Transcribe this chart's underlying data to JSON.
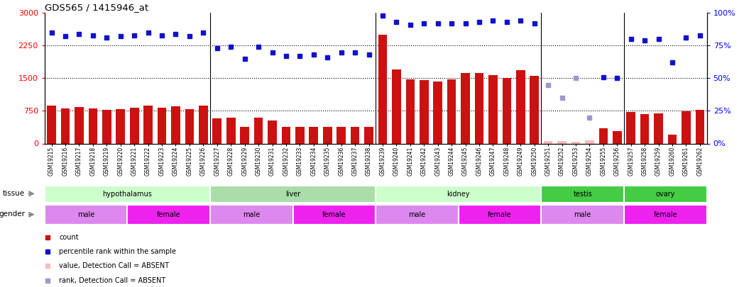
{
  "title": "GDS565 / 1415946_at",
  "samples": [
    "GSM19215",
    "GSM19216",
    "GSM19217",
    "GSM19218",
    "GSM19219",
    "GSM19220",
    "GSM19221",
    "GSM19222",
    "GSM19223",
    "GSM19224",
    "GSM19225",
    "GSM19226",
    "GSM19227",
    "GSM19228",
    "GSM19229",
    "GSM19230",
    "GSM19231",
    "GSM19232",
    "GSM19233",
    "GSM19234",
    "GSM19235",
    "GSM19236",
    "GSM19237",
    "GSM19238",
    "GSM19239",
    "GSM19240",
    "GSM19241",
    "GSM19242",
    "GSM19243",
    "GSM19244",
    "GSM19245",
    "GSM19246",
    "GSM19247",
    "GSM19248",
    "GSM19249",
    "GSM19250",
    "GSM19251",
    "GSM19252",
    "GSM19253",
    "GSM19254",
    "GSM19255",
    "GSM19256",
    "GSM19257",
    "GSM19258",
    "GSM19259",
    "GSM19260",
    "GSM19261",
    "GSM19262"
  ],
  "counts": [
    870,
    810,
    840,
    800,
    780,
    790,
    820,
    870,
    820,
    860,
    790,
    870,
    570,
    590,
    390,
    590,
    530,
    390,
    390,
    390,
    390,
    390,
    390,
    390,
    2500,
    1700,
    1470,
    1450,
    1420,
    1480,
    1620,
    1620,
    1570,
    1510,
    1680,
    1560,
    null,
    null,
    null,
    null,
    350,
    290,
    720,
    680,
    700,
    200,
    740,
    770
  ],
  "absent_counts": [
    null,
    null,
    null,
    null,
    null,
    null,
    null,
    null,
    null,
    null,
    null,
    null,
    null,
    null,
    null,
    null,
    null,
    null,
    null,
    null,
    null,
    null,
    null,
    null,
    null,
    null,
    null,
    null,
    null,
    null,
    null,
    null,
    null,
    null,
    null,
    null,
    55,
    60,
    40,
    80,
    null,
    null,
    null,
    null,
    null,
    null,
    null,
    null
  ],
  "ranks": [
    85,
    82,
    84,
    83,
    81,
    82,
    83,
    85,
    83,
    84,
    82,
    85,
    73,
    74,
    65,
    74,
    70,
    67,
    67,
    68,
    66,
    70,
    70,
    68,
    98,
    93,
    91,
    92,
    92,
    92,
    92,
    93,
    94,
    93,
    94,
    92,
    null,
    null,
    null,
    null,
    51,
    50,
    80,
    79,
    80,
    62,
    81,
    83
  ],
  "absent_ranks": [
    null,
    null,
    null,
    null,
    null,
    null,
    null,
    null,
    null,
    null,
    null,
    null,
    null,
    null,
    null,
    null,
    null,
    null,
    null,
    null,
    null,
    null,
    null,
    null,
    null,
    null,
    null,
    null,
    null,
    null,
    null,
    null,
    null,
    null,
    null,
    null,
    45,
    35,
    50,
    20,
    null,
    null,
    null,
    null,
    null,
    null,
    null,
    null
  ],
  "tissue_segments": [
    {
      "label": "hypothalamus",
      "start": 0,
      "end": 11,
      "color": "#ccffcc"
    },
    {
      "label": "liver",
      "start": 12,
      "end": 23,
      "color": "#aaddaa"
    },
    {
      "label": "kidney",
      "start": 24,
      "end": 35,
      "color": "#ccffcc"
    },
    {
      "label": "testis",
      "start": 36,
      "end": 41,
      "color": "#44cc44"
    },
    {
      "label": "ovary",
      "start": 42,
      "end": 47,
      "color": "#44cc44"
    }
  ],
  "gender_segments": [
    {
      "label": "male",
      "start": 0,
      "end": 5,
      "color": "#dd88ee"
    },
    {
      "label": "female",
      "start": 6,
      "end": 11,
      "color": "#ee22ee"
    },
    {
      "label": "male",
      "start": 12,
      "end": 17,
      "color": "#dd88ee"
    },
    {
      "label": "female",
      "start": 18,
      "end": 23,
      "color": "#ee22ee"
    },
    {
      "label": "male",
      "start": 24,
      "end": 29,
      "color": "#dd88ee"
    },
    {
      "label": "female",
      "start": 30,
      "end": 35,
      "color": "#ee22ee"
    },
    {
      "label": "male",
      "start": 36,
      "end": 41,
      "color": "#dd88ee"
    },
    {
      "label": "female",
      "start": 42,
      "end": 47,
      "color": "#ee22ee"
    }
  ],
  "ylim_left": [
    0,
    3000
  ],
  "ylim_right": [
    0,
    100
  ],
  "yticks_left": [
    0,
    750,
    1500,
    2250,
    3000
  ],
  "yticks_right": [
    0,
    25,
    50,
    75,
    100
  ],
  "bar_color": "#cc1111",
  "absent_bar_color": "#ffbbbb",
  "rank_color": "#1111cc",
  "absent_rank_color": "#9999cc",
  "legend_items": [
    {
      "label": "count",
      "color": "#cc1111"
    },
    {
      "label": "percentile rank within the sample",
      "color": "#1111cc"
    },
    {
      "label": "value, Detection Call = ABSENT",
      "color": "#ffbbbb"
    },
    {
      "label": "rank, Detection Call = ABSENT",
      "color": "#9999cc"
    }
  ]
}
